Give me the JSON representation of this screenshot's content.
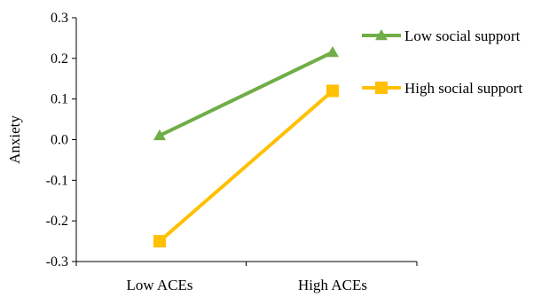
{
  "chart_data": {
    "type": "line",
    "categories": [
      "Low ACEs",
      "High ACEs"
    ],
    "ylabel": "Anxiety",
    "ylim": [
      -0.3,
      0.3
    ],
    "yticks": [
      "0.3",
      "0.2",
      "0.1",
      "0.0",
      "-0.1",
      "-0.2",
      "-0.3"
    ],
    "grid": false,
    "legend_position": "top-right",
    "series": [
      {
        "name": "Low social support",
        "values": [
          0.01,
          0.215
        ],
        "color": "#70AD47",
        "marker": "triangle"
      },
      {
        "name": "High social support",
        "values": [
          -0.25,
          0.12
        ],
        "color": "#FFC000",
        "marker": "square"
      }
    ]
  }
}
